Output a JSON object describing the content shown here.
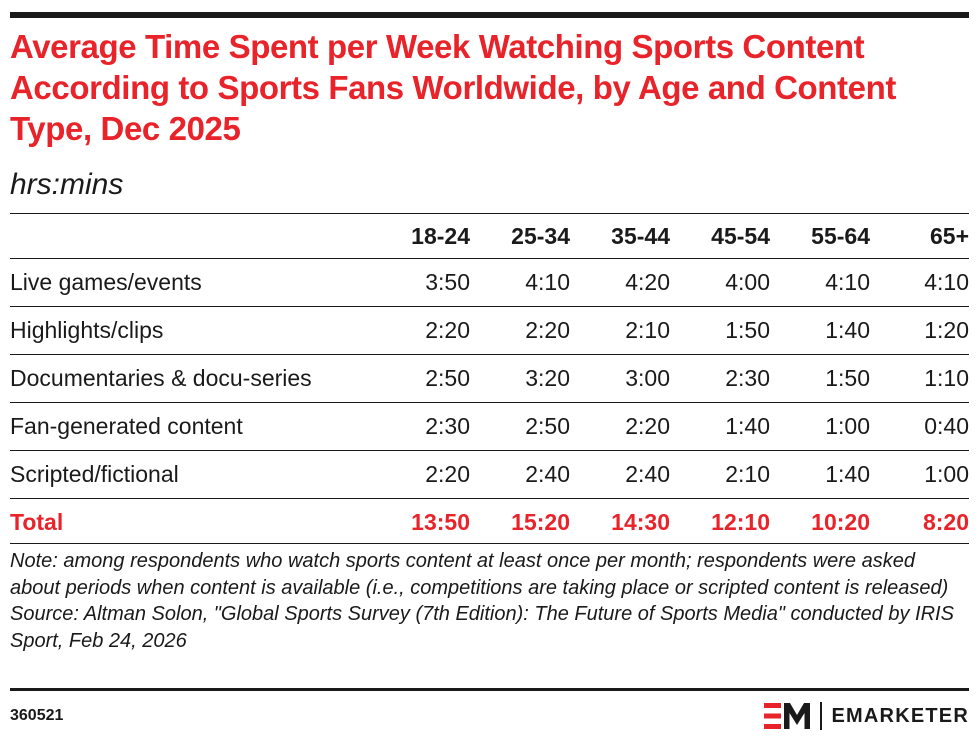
{
  "chart_data": {
    "type": "table",
    "title": "Average Time Spent per Week Watching Sports Content According to Sports Fans Worldwide, by Age and Content Type, Dec 2025",
    "subtitle": "hrs:mins",
    "columns": [
      "18-24",
      "25-34",
      "35-44",
      "45-54",
      "55-64",
      "65+"
    ],
    "rows": [
      {
        "label": "Live games/events",
        "values": [
          "3:50",
          "4:10",
          "4:20",
          "4:00",
          "4:10",
          "4:10"
        ]
      },
      {
        "label": "Highlights/clips",
        "values": [
          "2:20",
          "2:20",
          "2:10",
          "1:50",
          "1:40",
          "1:20"
        ]
      },
      {
        "label": "Documentaries & docu-series",
        "values": [
          "2:50",
          "3:20",
          "3:00",
          "2:30",
          "1:50",
          "1:10"
        ]
      },
      {
        "label": "Fan-generated content",
        "values": [
          "2:30",
          "2:50",
          "2:20",
          "1:40",
          "1:00",
          "0:40"
        ]
      },
      {
        "label": "Scripted/fictional",
        "values": [
          "2:20",
          "2:40",
          "2:40",
          "2:10",
          "1:40",
          "1:00"
        ]
      }
    ],
    "total": {
      "label": "Total",
      "values": [
        "13:50",
        "15:20",
        "14:30",
        "12:10",
        "10:20",
        "8:20"
      ]
    }
  },
  "note": "Note: among respondents who watch sports content at least once per month; respondents were asked about periods when content is available (i.e., competitions are taking place or scripted content is released)",
  "source": "Source: Altman Solon, \"Global Sports Survey (7th Edition): The Future of Sports Media\" conducted by IRIS Sport, Feb 24, 2026",
  "chart_id": "360521",
  "brand": {
    "name": "EMARKETER",
    "accent_color": "#e8232a",
    "text_color": "#1a1a1a"
  }
}
